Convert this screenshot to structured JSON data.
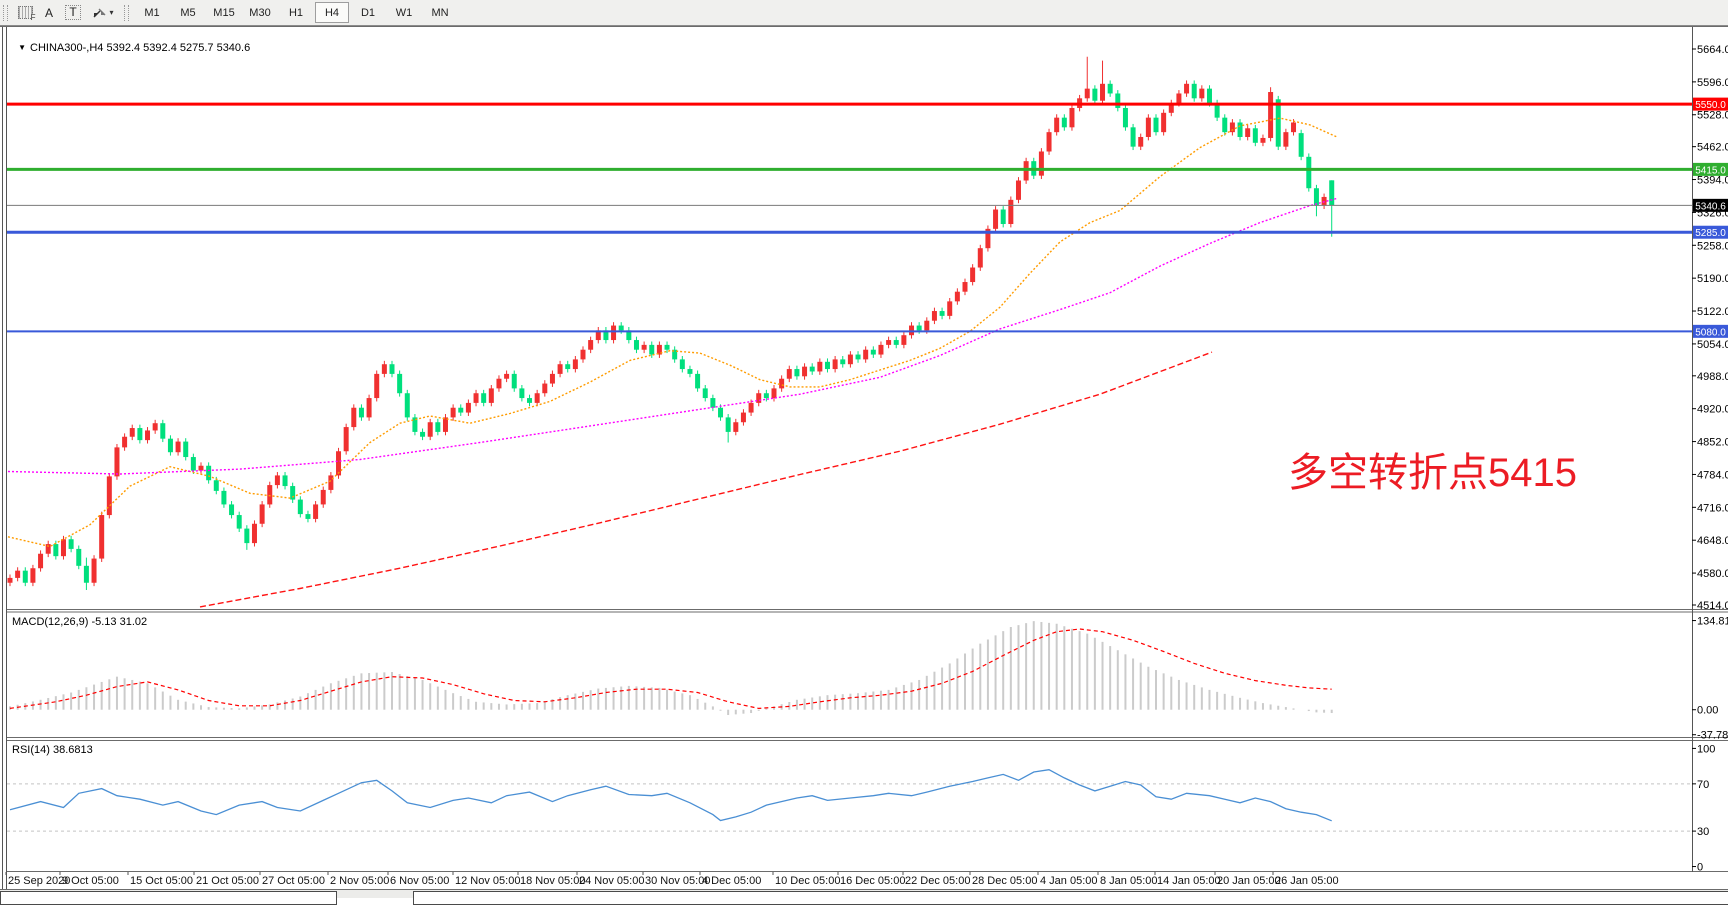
{
  "toolbar": {
    "tools": [
      {
        "id": "period-grid",
        "glyph": "F"
      },
      {
        "id": "text-label",
        "glyph": "A"
      },
      {
        "id": "text-tool",
        "glyph": "T"
      },
      {
        "id": "cursor-tools",
        "glyph": "▾"
      }
    ],
    "timeframes": [
      "M1",
      "M5",
      "M15",
      "M30",
      "H1",
      "H4",
      "D1",
      "W1",
      "MN"
    ],
    "active_timeframe": "H4"
  },
  "header": {
    "dropdown_glyph": "▼",
    "symbol": "CHINA300-,H4",
    "ohlc_text": "5392.4 5392.4 5275.7 5340.6"
  },
  "annotation": {
    "text": "多空转折点5415",
    "color": "#ec1c24"
  },
  "indicators": {
    "macd_label": "MACD(12,26,9) -5.13 31.02",
    "rsi_label": "RSI(14) 38.6813"
  },
  "chart_data": {
    "type": "candlestick",
    "symbol": "CHINA300-",
    "timeframe": "H4",
    "current_bar": {
      "open": 5392.4,
      "high": 5392.4,
      "low": 5275.7,
      "close": 5340.6
    },
    "colors": {
      "up": "#f03030",
      "down": "#00df7d",
      "hist": "#cbcbcb",
      "signal": "#ff0000",
      "rsi": "#4a8fd4",
      "ma_orange": "#ff9c00",
      "ma_magenta": "#ff00ff",
      "ma_red": "#ff1212",
      "hline_red": "#ff0000",
      "hline_green": "#2fae2f",
      "hline_blue": "#3959d9",
      "bid_line": "#7a7a7a",
      "badge_black": "#000000"
    },
    "price_panel": {
      "ylim": [
        4505.7,
        5709.5
      ],
      "ticks": [
        "5664.0",
        "5596.0",
        "5528.0",
        "5462.0",
        "5394.0",
        "5326.0",
        "5258.0",
        "5190.0",
        "5122.0",
        "5054.0",
        "4988.0",
        "4920.0",
        "4852.0",
        "4784.0",
        "4716.0",
        "4648.0",
        "4580.0",
        "4514.0"
      ],
      "hlines": [
        {
          "price": 5550.0,
          "color": "#ff0000",
          "width": 3,
          "label": "5550.0",
          "badge": "#ff0000"
        },
        {
          "price": 5415.0,
          "color": "#2fae2f",
          "width": 3,
          "label": "5415.0",
          "badge": "#2fae2f"
        },
        {
          "price": 5340.6,
          "color": "#7a7a7a",
          "width": 1,
          "label": "5340.6",
          "badge": "#000000"
        },
        {
          "price": 5285.0,
          "color": "#3959d9",
          "width": 3,
          "label": "5285.0",
          "badge": "#3959d9"
        },
        {
          "price": 5080.0,
          "color": "#3959d9",
          "width": 2,
          "label": "5080.0",
          "badge": "#3959d9"
        }
      ],
      "closes": [
        4570,
        4585,
        4560,
        4590,
        4620,
        4640,
        4615,
        4650,
        4630,
        4595,
        4560,
        4610,
        4700,
        4780,
        4840,
        4862,
        4880,
        4855,
        4875,
        4890,
        4858,
        4830,
        4852,
        4820,
        4792,
        4802,
        4772,
        4750,
        4722,
        4700,
        4672,
        4642,
        4682,
        4722,
        4762,
        4782,
        4760,
        4732,
        4702,
        4692,
        4722,
        4752,
        4782,
        4832,
        4882,
        4922,
        4902,
        4942,
        4992,
        5012,
        4992,
        4952,
        4902,
        4872,
        4862,
        4892,
        4872,
        4902,
        4922,
        4912,
        4932,
        4952,
        4932,
        4962,
        4982,
        4992,
        4962,
        4942,
        4932,
        4952,
        4972,
        4992,
        5012,
        5002,
        5022,
        5042,
        5062,
        5082,
        5062,
        5092,
        5082,
        5062,
        5042,
        5052,
        5032,
        5052,
        5042,
        5022,
        5002,
        4992,
        4962,
        4942,
        4922,
        4902,
        4872,
        4892,
        4912,
        4932,
        4952,
        4942,
        4962,
        4982,
        5002,
        4987,
        5007,
        4997,
        5017,
        5002,
        5022,
        5012,
        5032,
        5022,
        5042,
        5032,
        5052,
        5062,
        5052,
        5072,
        5092,
        5082,
        5102,
        5122,
        5112,
        5142,
        5162,
        5182,
        5212,
        5252,
        5292,
        5332,
        5302,
        5352,
        5392,
        5432,
        5402,
        5452,
        5492,
        5522,
        5502,
        5542,
        5562,
        5582,
        5557,
        5592,
        5572,
        5542,
        5502,
        5462,
        5482,
        5522,
        5492,
        5532,
        5552,
        5572,
        5592,
        5562,
        5582,
        5552,
        5522,
        5492,
        5512,
        5482,
        5500,
        5470,
        5480,
        5575,
        5462,
        5492,
        5512,
        5441,
        5376,
        5340,
        5358,
        5340.6
      ],
      "open_overrides": {
        "0": 4560,
        "166": 5560,
        "169": 5490,
        "173": 5392.4
      },
      "high_overrides": {
        "10": 4612,
        "141": 5648,
        "143": 5640,
        "165": 5585,
        "173": 5392.4
      },
      "low_overrides": {
        "10": 4545,
        "31": 4628,
        "94": 4850,
        "166": 5455,
        "171": 5318,
        "173": 5275.7
      },
      "ma_orange": [
        [
          8,
          4655
        ],
        [
          50,
          4635
        ],
        [
          90,
          4680
        ],
        [
          130,
          4760
        ],
        [
          170,
          4800
        ],
        [
          210,
          4780
        ],
        [
          250,
          4745
        ],
        [
          290,
          4735
        ],
        [
          330,
          4770
        ],
        [
          370,
          4850
        ],
        [
          400,
          4890
        ],
        [
          430,
          4905
        ],
        [
          470,
          4890
        ],
        [
          510,
          4910
        ],
        [
          550,
          4935
        ],
        [
          590,
          4975
        ],
        [
          630,
          5020
        ],
        [
          670,
          5040
        ],
        [
          700,
          5035
        ],
        [
          730,
          5010
        ],
        [
          760,
          4980
        ],
        [
          790,
          4965
        ],
        [
          820,
          4965
        ],
        [
          850,
          4980
        ],
        [
          880,
          5000
        ],
        [
          910,
          5020
        ],
        [
          940,
          5045
        ],
        [
          970,
          5080
        ],
        [
          1000,
          5130
        ],
        [
          1030,
          5200
        ],
        [
          1060,
          5265
        ],
        [
          1090,
          5305
        ],
        [
          1120,
          5330
        ],
        [
          1160,
          5400
        ],
        [
          1200,
          5460
        ],
        [
          1240,
          5505
        ],
        [
          1280,
          5521
        ],
        [
          1310,
          5507
        ],
        [
          1337,
          5482
        ]
      ],
      "ma_magenta": [
        [
          8,
          4790
        ],
        [
          120,
          4785
        ],
        [
          240,
          4795
        ],
        [
          360,
          4815
        ],
        [
          480,
          4850
        ],
        [
          560,
          4875
        ],
        [
          640,
          4900
        ],
        [
          720,
          4925
        ],
        [
          800,
          4950
        ],
        [
          880,
          4985
        ],
        [
          940,
          5030
        ],
        [
          1000,
          5085
        ],
        [
          1060,
          5125
        ],
        [
          1110,
          5160
        ],
        [
          1160,
          5215
        ],
        [
          1210,
          5262
        ],
        [
          1260,
          5305
        ],
        [
          1310,
          5340
        ],
        [
          1337,
          5355
        ]
      ],
      "ma_red": [
        [
          200,
          4510
        ],
        [
          300,
          4548
        ],
        [
          400,
          4590
        ],
        [
          500,
          4636
        ],
        [
          600,
          4684
        ],
        [
          700,
          4734
        ],
        [
          800,
          4784
        ],
        [
          900,
          4832
        ],
        [
          1000,
          4888
        ],
        [
          1100,
          4950
        ],
        [
          1212,
          5037
        ]
      ]
    },
    "macd_panel": {
      "label": "MACD(12,26,9) -5.13 31.02",
      "macd_value": -5.13,
      "signal_value": 31.02,
      "ylim": [
        -42,
        147
      ],
      "ticks": [
        {
          "v": 134.81,
          "t": "134.81"
        },
        {
          "v": 0,
          "t": "0.00"
        },
        {
          "v": -37.78,
          "t": "-37.78"
        }
      ],
      "hist_anchors": [
        [
          0,
          5
        ],
        [
          4,
          15
        ],
        [
          8,
          26
        ],
        [
          12,
          42
        ],
        [
          14,
          50
        ],
        [
          18,
          40
        ],
        [
          22,
          15
        ],
        [
          26,
          4
        ],
        [
          30,
          2
        ],
        [
          34,
          8
        ],
        [
          38,
          20
        ],
        [
          42,
          40
        ],
        [
          46,
          55
        ],
        [
          50,
          57
        ],
        [
          54,
          45
        ],
        [
          58,
          25
        ],
        [
          61,
          12
        ],
        [
          65,
          8
        ],
        [
          69,
          10
        ],
        [
          73,
          22
        ],
        [
          77,
          32
        ],
        [
          81,
          36
        ],
        [
          85,
          33
        ],
        [
          89,
          22
        ],
        [
          92,
          5
        ],
        [
          94,
          -8
        ],
        [
          97,
          -5
        ],
        [
          100,
          5
        ],
        [
          103,
          15
        ],
        [
          107,
          22
        ],
        [
          111,
          25
        ],
        [
          115,
          30
        ],
        [
          119,
          45
        ],
        [
          123,
          70
        ],
        [
          127,
          100
        ],
        [
          131,
          125
        ],
        [
          134,
          134
        ],
        [
          137,
          130
        ],
        [
          141,
          115
        ],
        [
          145,
          90
        ],
        [
          149,
          65
        ],
        [
          153,
          45
        ],
        [
          157,
          30
        ],
        [
          161,
          18
        ],
        [
          164,
          10
        ],
        [
          167,
          4
        ],
        [
          169,
          0
        ],
        [
          171,
          -4
        ],
        [
          173,
          -5
        ]
      ],
      "signal_anchors": [
        [
          0,
          2
        ],
        [
          6,
          12
        ],
        [
          10,
          22
        ],
        [
          14,
          35
        ],
        [
          18,
          42
        ],
        [
          22,
          30
        ],
        [
          26,
          14
        ],
        [
          30,
          6
        ],
        [
          34,
          6
        ],
        [
          38,
          14
        ],
        [
          42,
          28
        ],
        [
          46,
          42
        ],
        [
          50,
          50
        ],
        [
          54,
          48
        ],
        [
          58,
          38
        ],
        [
          62,
          24
        ],
        [
          66,
          14
        ],
        [
          70,
          12
        ],
        [
          74,
          18
        ],
        [
          78,
          26
        ],
        [
          82,
          31
        ],
        [
          86,
          31
        ],
        [
          90,
          26
        ],
        [
          94,
          12
        ],
        [
          98,
          2
        ],
        [
          102,
          5
        ],
        [
          106,
          12
        ],
        [
          110,
          18
        ],
        [
          114,
          22
        ],
        [
          118,
          28
        ],
        [
          122,
          40
        ],
        [
          126,
          58
        ],
        [
          130,
          82
        ],
        [
          134,
          105
        ],
        [
          137,
          118
        ],
        [
          140,
          122
        ],
        [
          143,
          118
        ],
        [
          147,
          105
        ],
        [
          151,
          88
        ],
        [
          155,
          70
        ],
        [
          159,
          55
        ],
        [
          163,
          44
        ],
        [
          167,
          37
        ],
        [
          170,
          33
        ],
        [
          173,
          31
        ]
      ]
    },
    "rsi_panel": {
      "label": "RSI(14) 38.6813",
      "current": 38.6813,
      "ylim": [
        -4.2,
        106.7
      ],
      "ticks": [
        {
          "v": 100,
          "t": "100"
        },
        {
          "v": 70,
          "t": "70",
          "dashed": true
        },
        {
          "v": 30,
          "t": "30",
          "dashed": true
        },
        {
          "v": 0,
          "t": "0"
        }
      ],
      "anchors": [
        [
          0,
          48
        ],
        [
          4,
          55
        ],
        [
          7,
          50
        ],
        [
          9,
          62
        ],
        [
          12,
          66
        ],
        [
          14,
          60
        ],
        [
          17,
          57
        ],
        [
          20,
          52
        ],
        [
          22,
          55
        ],
        [
          25,
          47
        ],
        [
          27,
          44
        ],
        [
          30,
          52
        ],
        [
          33,
          55
        ],
        [
          35,
          50
        ],
        [
          38,
          47
        ],
        [
          41,
          56
        ],
        [
          43,
          62
        ],
        [
          46,
          71
        ],
        [
          48,
          73
        ],
        [
          50,
          64
        ],
        [
          52,
          54
        ],
        [
          55,
          50
        ],
        [
          58,
          56
        ],
        [
          60,
          58
        ],
        [
          63,
          54
        ],
        [
          65,
          60
        ],
        [
          68,
          63
        ],
        [
          71,
          55
        ],
        [
          73,
          60
        ],
        [
          76,
          65
        ],
        [
          78,
          68
        ],
        [
          81,
          61
        ],
        [
          84,
          60
        ],
        [
          86,
          62
        ],
        [
          89,
          54
        ],
        [
          92,
          44
        ],
        [
          93,
          39
        ],
        [
          95,
          42
        ],
        [
          97,
          46
        ],
        [
          99,
          52
        ],
        [
          103,
          58
        ],
        [
          105,
          60
        ],
        [
          107,
          56
        ],
        [
          110,
          58
        ],
        [
          113,
          60
        ],
        [
          115,
          62
        ],
        [
          118,
          60
        ],
        [
          120,
          63
        ],
        [
          123,
          68
        ],
        [
          126,
          72
        ],
        [
          128,
          75
        ],
        [
          130,
          78
        ],
        [
          132,
          73
        ],
        [
          134,
          80
        ],
        [
          136,
          82
        ],
        [
          138,
          75
        ],
        [
          140,
          69
        ],
        [
          142,
          64
        ],
        [
          144,
          68
        ],
        [
          146,
          72
        ],
        [
          148,
          69
        ],
        [
          150,
          59
        ],
        [
          152,
          57
        ],
        [
          154,
          62
        ],
        [
          157,
          60
        ],
        [
          159,
          57
        ],
        [
          161,
          54
        ],
        [
          163,
          58
        ],
        [
          165,
          55
        ],
        [
          167,
          49
        ],
        [
          169,
          46
        ],
        [
          171,
          44
        ],
        [
          173,
          38.7
        ]
      ]
    },
    "time_axis": [
      [
        "25 Sep 2020",
        8
      ],
      [
        "9 Oct 05:00",
        62
      ],
      [
        "15 Oct 05:00",
        130
      ],
      [
        "21 Oct 05:00",
        196
      ],
      [
        "27 Oct 05:00",
        262
      ],
      [
        "2 Nov 05:00",
        330
      ],
      [
        "6 Nov 05:00",
        390
      ],
      [
        "12 Nov 05:00",
        455
      ],
      [
        "18 Nov 05:00",
        520
      ],
      [
        "24 Nov 05:00",
        579
      ],
      [
        "30 Nov 05:00",
        645
      ],
      [
        "4 Dec 05:00",
        702
      ],
      [
        "10 Dec 05:00",
        775
      ],
      [
        "16 Dec 05:00",
        840
      ],
      [
        "22 Dec 05:00",
        905
      ],
      [
        "28 Dec 05:00",
        972
      ],
      [
        "4 Jan 05:00",
        1040
      ],
      [
        "8 Jan 05:00",
        1100
      ],
      [
        "14 Jan 05:00",
        1157
      ],
      [
        "20 Jan 05:00",
        1217
      ],
      [
        "26 Jan 05:00",
        1275
      ]
    ]
  }
}
